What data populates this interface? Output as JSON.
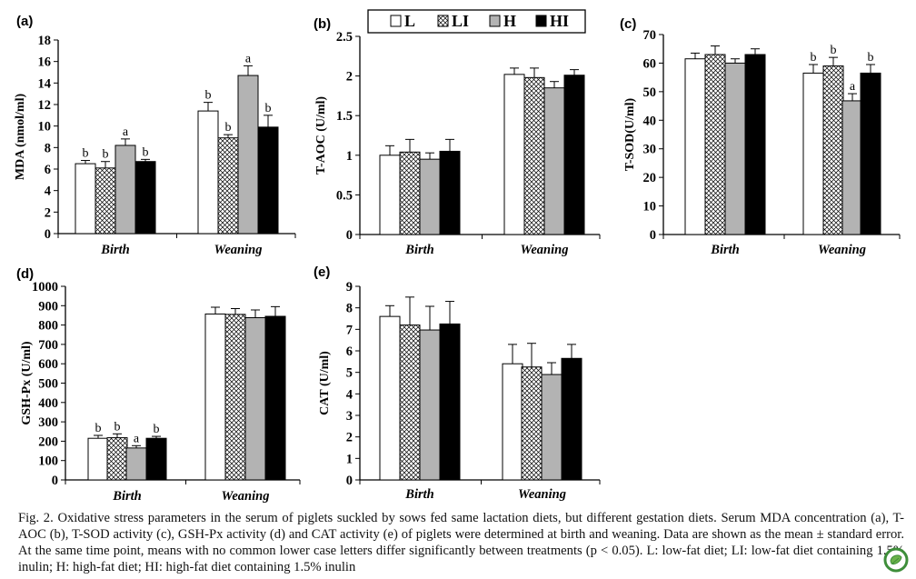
{
  "legend": {
    "entries": [
      {
        "key": "L",
        "pattern": "open"
      },
      {
        "key": "LI",
        "pattern": "crosshatch"
      },
      {
        "key": "H",
        "pattern": "gray"
      },
      {
        "key": "HI",
        "pattern": "black"
      }
    ]
  },
  "colors": {
    "open": "#ffffff",
    "gray": "#b3b3b3",
    "black": "#000000",
    "stroke": "#000000"
  },
  "chart_data": [
    {
      "type": "bar",
      "panel_label": "(a)",
      "ylabel": "MDA (nmol/ml)",
      "ylim": [
        0,
        18
      ],
      "yticks": [
        0,
        2,
        4,
        6,
        8,
        10,
        12,
        14,
        16,
        18
      ],
      "categories": [
        "Birth",
        "Weaning"
      ],
      "series": [
        {
          "name": "L",
          "values": [
            6.5,
            11.4
          ],
          "errors": [
            0.3,
            0.8
          ],
          "letters": [
            "b",
            "b"
          ]
        },
        {
          "name": "LI",
          "values": [
            6.1,
            8.9
          ],
          "errors": [
            0.6,
            0.3
          ],
          "letters": [
            "b",
            "b"
          ]
        },
        {
          "name": "H",
          "values": [
            8.2,
            14.7
          ],
          "errors": [
            0.6,
            0.9
          ],
          "letters": [
            "a",
            "a"
          ]
        },
        {
          "name": "HI",
          "values": [
            6.7,
            9.9
          ],
          "errors": [
            0.2,
            1.1
          ],
          "letters": [
            "b",
            "b"
          ]
        }
      ]
    },
    {
      "type": "bar",
      "panel_label": "(b)",
      "ylabel": "T-AOC (U/ml)",
      "ylim": [
        0,
        2.5
      ],
      "yticks": [
        0,
        0.5,
        1,
        1.5,
        2,
        2.5
      ],
      "categories": [
        "Birth",
        "Weaning"
      ],
      "series": [
        {
          "name": "L",
          "values": [
            1.0,
            2.02
          ],
          "errors": [
            0.12,
            0.08
          ],
          "letters": [
            "",
            ""
          ]
        },
        {
          "name": "LI",
          "values": [
            1.04,
            1.98
          ],
          "errors": [
            0.16,
            0.12
          ],
          "letters": [
            "",
            ""
          ]
        },
        {
          "name": "H",
          "values": [
            0.95,
            1.85
          ],
          "errors": [
            0.08,
            0.08
          ],
          "letters": [
            "",
            ""
          ]
        },
        {
          "name": "HI",
          "values": [
            1.05,
            2.01
          ],
          "errors": [
            0.15,
            0.07
          ],
          "letters": [
            "",
            ""
          ]
        }
      ]
    },
    {
      "type": "bar",
      "panel_label": "(c)",
      "ylabel": "T-SOD(U/ml)",
      "ylim": [
        0,
        70
      ],
      "yticks": [
        0,
        10,
        20,
        30,
        40,
        50,
        60,
        70
      ],
      "categories": [
        "Birth",
        "Weaning"
      ],
      "series": [
        {
          "name": "L",
          "values": [
            61.5,
            56.5
          ],
          "errors": [
            2.0,
            3.0
          ],
          "letters": [
            "",
            "b"
          ]
        },
        {
          "name": "LI",
          "values": [
            63.0,
            59.0
          ],
          "errors": [
            3.0,
            3.0
          ],
          "letters": [
            "",
            "b"
          ]
        },
        {
          "name": "H",
          "values": [
            60.0,
            46.8
          ],
          "errors": [
            1.5,
            2.5
          ],
          "letters": [
            "",
            "a"
          ]
        },
        {
          "name": "HI",
          "values": [
            63.0,
            56.5
          ],
          "errors": [
            2.0,
            3.0
          ],
          "letters": [
            "",
            "b"
          ]
        }
      ]
    },
    {
      "type": "bar",
      "panel_label": "(d)",
      "ylabel": "GSH-Px (U/ml)",
      "ylim": [
        0,
        1000
      ],
      "yticks": [
        0,
        100,
        200,
        300,
        400,
        500,
        600,
        700,
        800,
        900,
        1000
      ],
      "categories": [
        "Birth",
        "Weaning"
      ],
      "series": [
        {
          "name": "L",
          "values": [
            215,
            857
          ],
          "errors": [
            15,
            35
          ],
          "letters": [
            "b",
            ""
          ]
        },
        {
          "name": "LI",
          "values": [
            218,
            855
          ],
          "errors": [
            20,
            30
          ],
          "letters": [
            "b",
            ""
          ]
        },
        {
          "name": "H",
          "values": [
            165,
            838
          ],
          "errors": [
            12,
            40
          ],
          "letters": [
            "a",
            ""
          ]
        },
        {
          "name": "HI",
          "values": [
            215,
            845
          ],
          "errors": [
            10,
            50
          ],
          "letters": [
            "b",
            ""
          ]
        }
      ]
    },
    {
      "type": "bar",
      "panel_label": "(e)",
      "ylabel": "CAT (U/ml)",
      "ylim": [
        0,
        9
      ],
      "yticks": [
        0,
        1,
        2,
        3,
        4,
        5,
        6,
        7,
        8,
        9
      ],
      "categories": [
        "Birth",
        "Weaning"
      ],
      "series": [
        {
          "name": "L",
          "values": [
            7.6,
            5.4
          ],
          "errors": [
            0.5,
            0.9
          ],
          "letters": [
            "",
            ""
          ]
        },
        {
          "name": "LI",
          "values": [
            7.2,
            5.25
          ],
          "errors": [
            1.3,
            1.1
          ],
          "letters": [
            "",
            ""
          ]
        },
        {
          "name": "H",
          "values": [
            6.97,
            4.9
          ],
          "errors": [
            1.1,
            0.55
          ],
          "letters": [
            "",
            ""
          ]
        },
        {
          "name": "HI",
          "values": [
            7.25,
            5.65
          ],
          "errors": [
            1.05,
            0.65
          ],
          "letters": [
            "",
            ""
          ]
        }
      ]
    }
  ],
  "caption": "Fig. 2. Oxidative stress parameters in the serum of piglets suckled by sows fed same lactation diets, but different gestation diets. Serum MDA concentration (a), T-AOC (b), T-SOD activity (c), GSH-Px activity (d) and CAT activity (e) of piglets were determined at birth and weaning. Data are shown as the mean ± standard error. At the same time point, means with no common lower case letters differ significantly between treatments (p < 0.05). L: low-fat diet; LI: low-fat diet containing 1.5% inulin; H: high-fat diet; HI: high-fat diet containing 1.5% inulin",
  "logo_icon": "green-circle-logo-icon"
}
